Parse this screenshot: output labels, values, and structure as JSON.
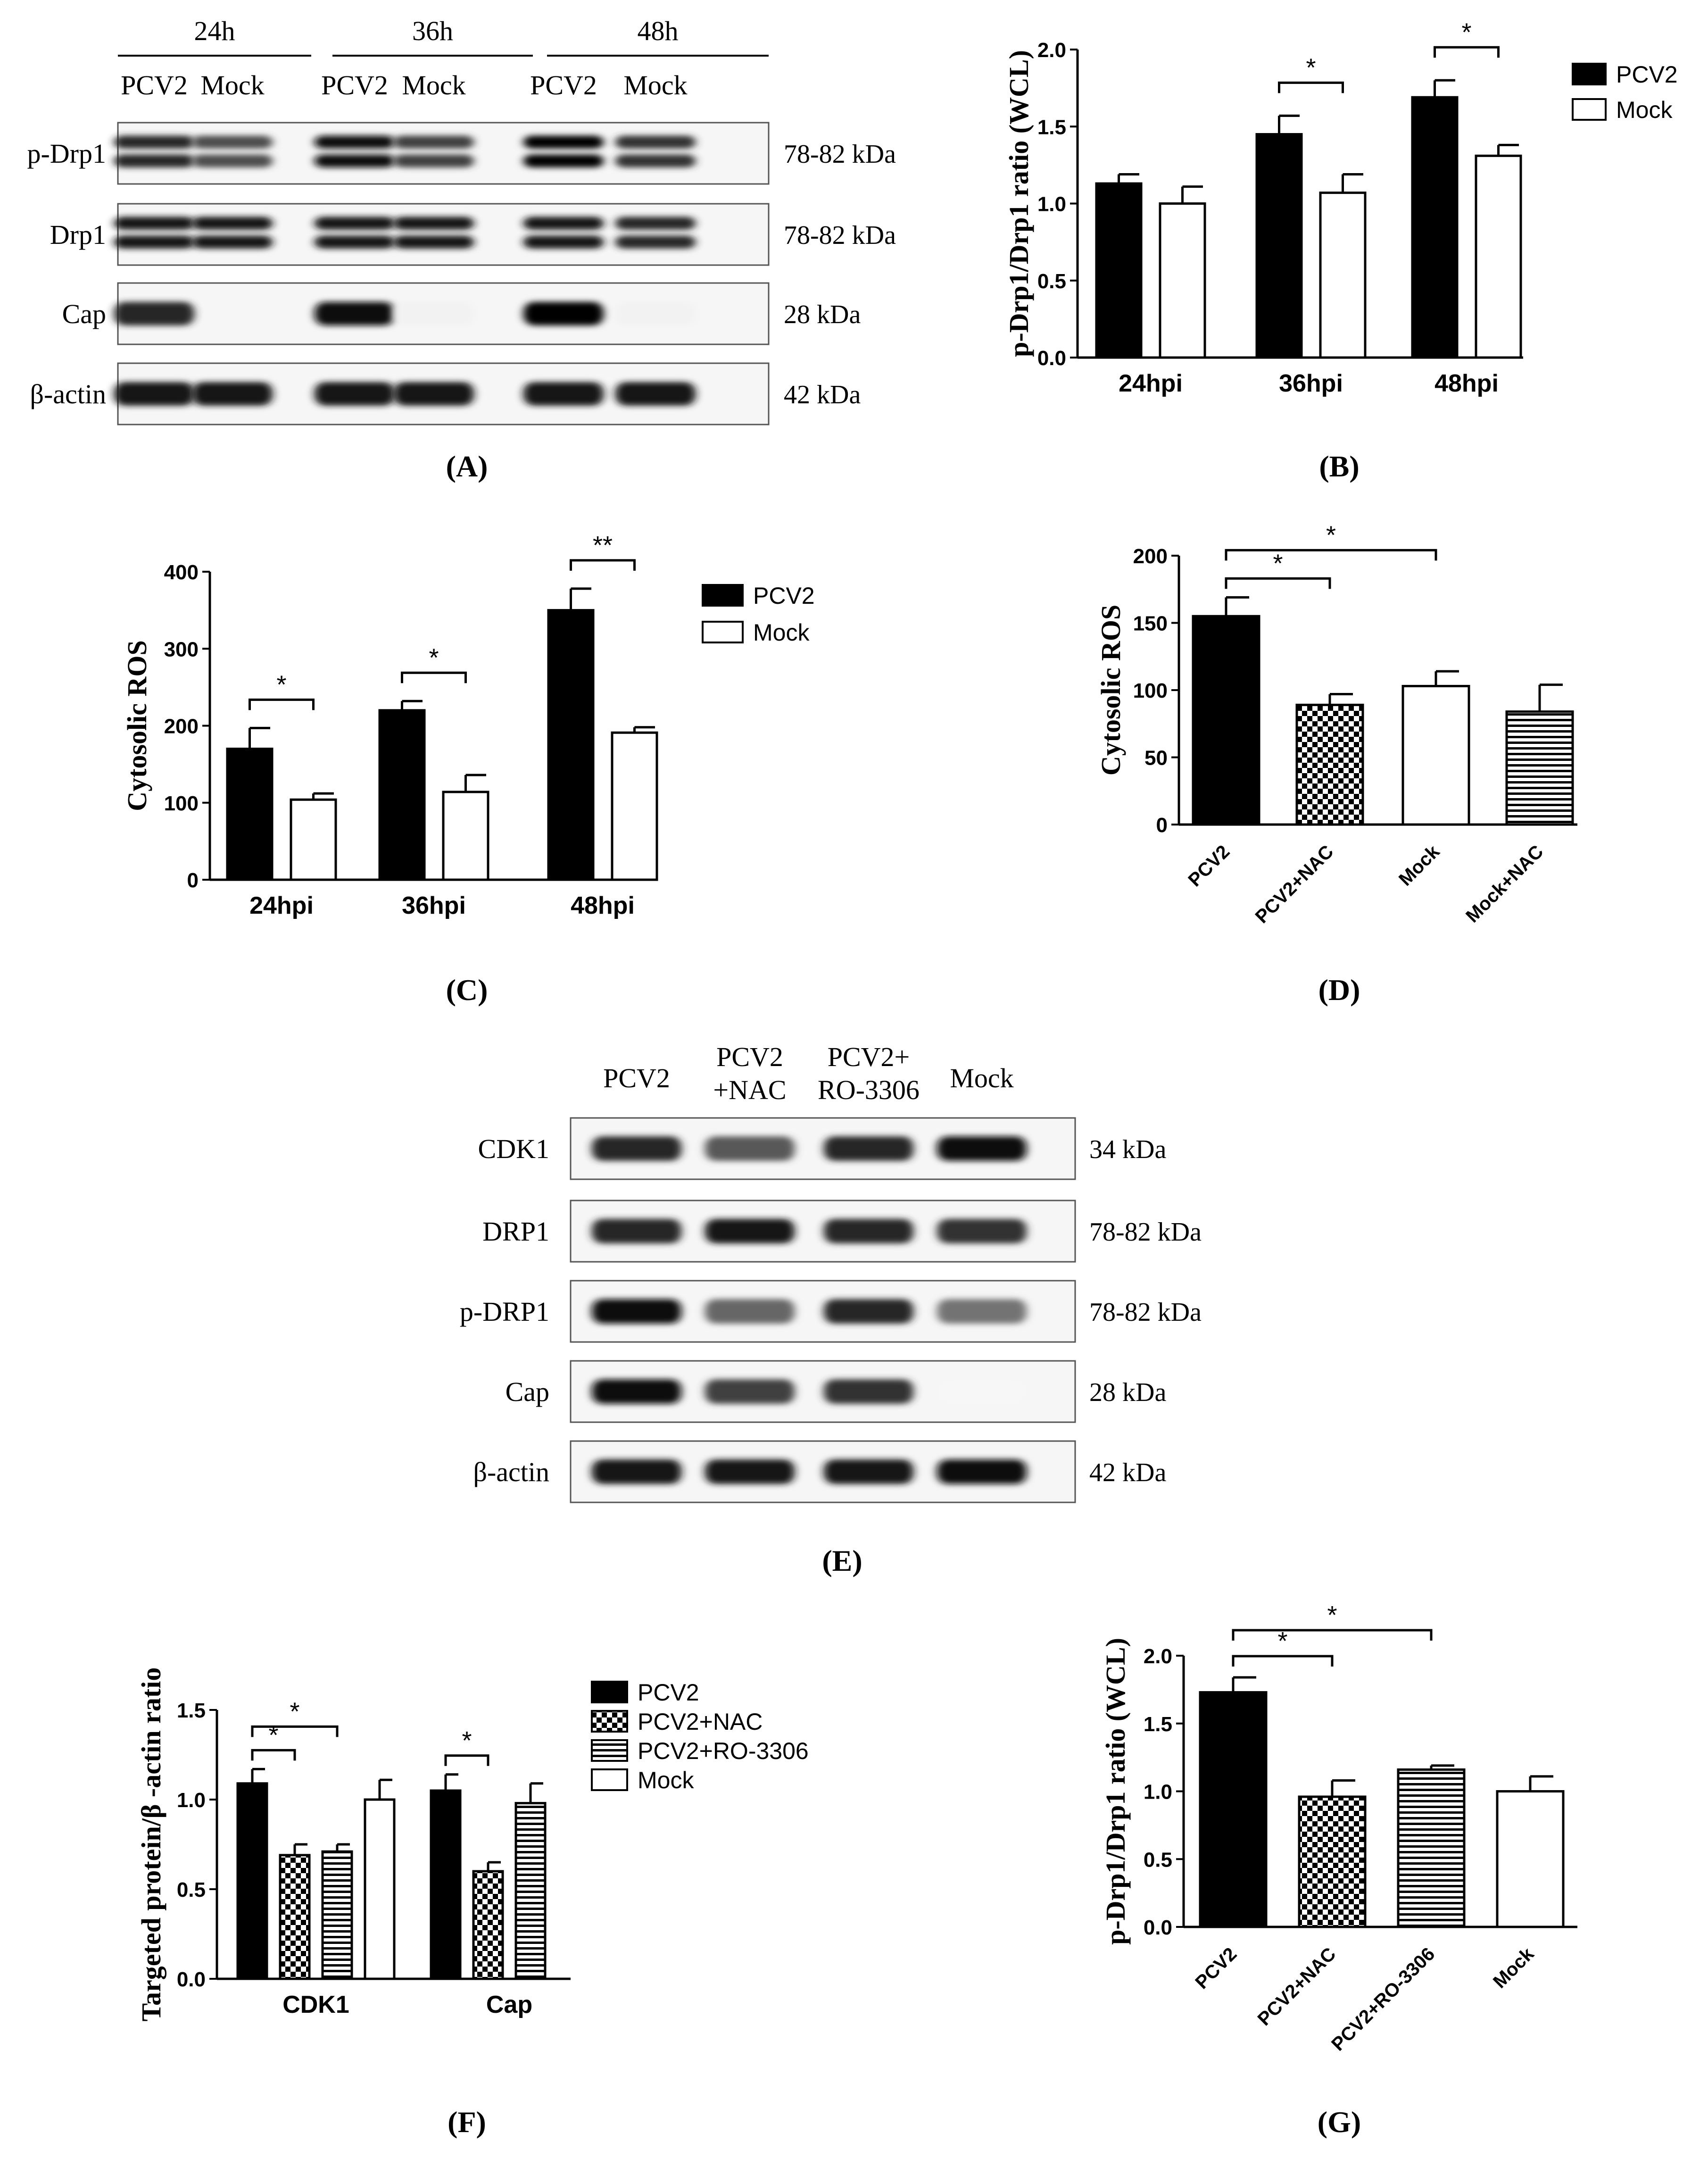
{
  "panel_labels": {
    "A": "(A)",
    "B": "(B)",
    "C": "(C)",
    "D": "(D)",
    "E": "(E)",
    "F": "(F)",
    "G": "(G)"
  },
  "blot_a": {
    "timepoints": [
      "24h",
      "36h",
      "48h"
    ],
    "lanes": [
      "PCV2",
      "Mock",
      "PCV2",
      "Mock",
      "PCV2",
      "Mock"
    ],
    "rows": [
      {
        "label": "p-Drp1",
        "size": "78-82 kDa",
        "intensity": [
          0.85,
          0.7,
          0.95,
          0.75,
          0.98,
          0.8
        ],
        "double": true
      },
      {
        "label": "Drp1",
        "size": "78-82 kDa",
        "intensity": [
          0.9,
          0.9,
          0.9,
          0.9,
          0.9,
          0.85
        ],
        "double": true
      },
      {
        "label": "Cap",
        "size": "28 kDa",
        "intensity": [
          0.85,
          0.0,
          0.95,
          0.05,
          1.0,
          0.05
        ],
        "double": false
      },
      {
        "label": "β-actin",
        "size": "42 kDa",
        "intensity": [
          0.9,
          0.9,
          0.9,
          0.9,
          0.9,
          0.9
        ],
        "double": false
      }
    ]
  },
  "blot_e": {
    "lanes": [
      "PCV2",
      "PCV2\n+NAC",
      "PCV2+\nRO-3306",
      "Mock"
    ],
    "rows": [
      {
        "label": "CDK1",
        "size": "34 kDa",
        "intensity": [
          0.85,
          0.65,
          0.85,
          0.95
        ]
      },
      {
        "label": "DRP1",
        "size": "78-82 kDa",
        "intensity": [
          0.85,
          0.9,
          0.85,
          0.8
        ]
      },
      {
        "label": "p-DRP1",
        "size": "78-82 kDa",
        "intensity": [
          0.95,
          0.6,
          0.85,
          0.55
        ]
      },
      {
        "label": "Cap",
        "size": "28 kDa",
        "intensity": [
          0.95,
          0.75,
          0.8,
          0.03
        ]
      },
      {
        "label": "β-actin",
        "size": "42 kDa",
        "intensity": [
          0.9,
          0.9,
          0.9,
          0.95
        ]
      }
    ]
  },
  "chart_data": [
    {
      "id": "B",
      "type": "bar",
      "ylabel": "p-Drp1/Drp1 ratio (WCL)",
      "categories": [
        "24hpi",
        "36hpi",
        "48hpi"
      ],
      "series": [
        {
          "name": "PCV2",
          "fill": "black",
          "values": [
            1.13,
            1.45,
            1.69
          ],
          "errors": [
            0.06,
            0.12,
            0.11
          ]
        },
        {
          "name": "Mock",
          "fill": "white",
          "values": [
            1.0,
            1.07,
            1.31
          ],
          "errors": [
            0.11,
            0.12,
            0.07
          ]
        }
      ],
      "ylim": [
        0,
        2.0
      ],
      "yticks": [
        "0.0",
        "0.5",
        "1.0",
        "1.5",
        "2.0"
      ],
      "significance": [
        {
          "category": 1,
          "label": "*"
        },
        {
          "category": 2,
          "label": "*"
        }
      ],
      "legend": "right"
    },
    {
      "id": "C",
      "type": "bar",
      "ylabel": "Cytosolic ROS",
      "categories": [
        "24hpi",
        "36hpi",
        "48hpi"
      ],
      "series": [
        {
          "name": "PCV2",
          "fill": "black",
          "values": [
            170,
            220,
            350
          ],
          "errors": [
            27,
            12,
            28
          ]
        },
        {
          "name": "Mock",
          "fill": "white",
          "values": [
            104,
            114,
            191
          ],
          "errors": [
            8,
            22,
            7
          ]
        }
      ],
      "ylim": [
        0,
        400
      ],
      "yticks": [
        "0",
        "100",
        "200",
        "300",
        "400"
      ],
      "significance": [
        {
          "category": 0,
          "label": "*"
        },
        {
          "category": 1,
          "label": "*"
        },
        {
          "category": 2,
          "label": "**"
        }
      ],
      "legend": "right"
    },
    {
      "id": "D",
      "type": "bar",
      "ylabel": "Cytosolic ROS",
      "categories": [
        "PCV2",
        "PCV2+NAC",
        "Mock",
        "Mock+NAC"
      ],
      "values": [
        155,
        89,
        103,
        84
      ],
      "errors": [
        14,
        8,
        11,
        20
      ],
      "fills": [
        "black",
        "checker",
        "white",
        "hstripe"
      ],
      "ylim": [
        0,
        200
      ],
      "yticks": [
        "0",
        "50",
        "100",
        "150",
        "200"
      ],
      "significance": [
        {
          "from": 0,
          "to": 1,
          "label": "*"
        },
        {
          "from": 0,
          "to": 2,
          "label": "*"
        }
      ]
    },
    {
      "id": "F",
      "type": "bar",
      "ylabel": "Targeted protein/β -actin ratio",
      "categories": [
        "CDK1",
        "Cap"
      ],
      "series": [
        {
          "name": "PCV2",
          "fill": "black",
          "values": [
            1.09,
            1.05
          ],
          "errors": [
            0.08,
            0.09
          ]
        },
        {
          "name": "PCV2+NAC",
          "fill": "checker",
          "values": [
            0.69,
            0.6
          ],
          "errors": [
            0.06,
            0.05
          ]
        },
        {
          "name": "PCV2+RO-3306",
          "fill": "hstripe",
          "values": [
            0.71,
            0.98
          ],
          "errors": [
            0.04,
            0.11
          ]
        },
        {
          "name": "Mock",
          "fill": "white",
          "values": [
            1.0,
            null
          ],
          "errors": [
            0.11,
            null
          ]
        }
      ],
      "ylim": [
        0,
        1.5
      ],
      "yticks": [
        "0.0",
        "0.5",
        "1.0",
        "1.5"
      ],
      "significance": [
        {
          "category": 0,
          "from": 0,
          "to": 1,
          "label": "*"
        },
        {
          "category": 0,
          "from": 0,
          "to": 2,
          "label": "*"
        },
        {
          "category": 1,
          "from": 0,
          "to": 1,
          "label": "*"
        }
      ],
      "legend": "right"
    },
    {
      "id": "G",
      "type": "bar",
      "ylabel": "p-Drp1/Drp1 ratio (WCL)",
      "categories": [
        "PCV2",
        "PCV2+NAC",
        "PCV2+RO-3306",
        "Mock"
      ],
      "values": [
        1.73,
        0.96,
        1.16,
        1.0
      ],
      "errors": [
        0.11,
        0.12,
        0.03,
        0.11
      ],
      "fills": [
        "black",
        "checker",
        "hstripe",
        "white"
      ],
      "ylim": [
        0,
        2.0
      ],
      "yticks": [
        "0.0",
        "0.5",
        "1.0",
        "1.5",
        "2.0"
      ],
      "significance": [
        {
          "from": 0,
          "to": 1,
          "label": "*"
        },
        {
          "from": 0,
          "to": 2,
          "label": "*"
        }
      ]
    }
  ]
}
